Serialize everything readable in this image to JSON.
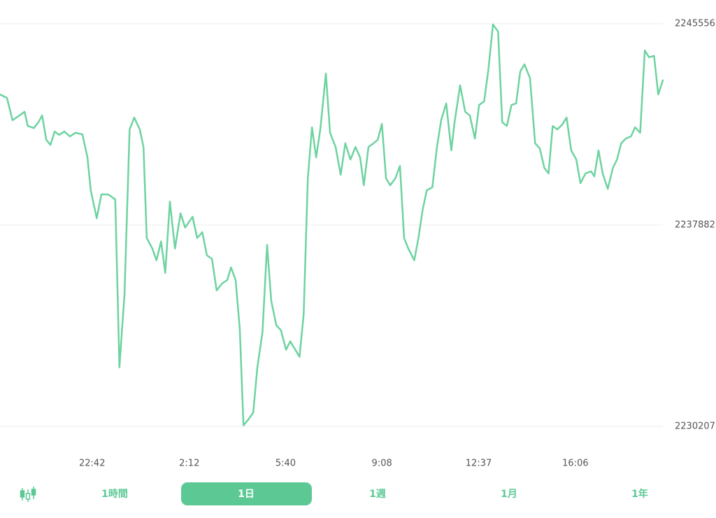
{
  "chart_data": {
    "type": "line",
    "color": "#6dd3a0",
    "grid": true,
    "xlim": [
      1163,
      2595
    ],
    "xticks": [
      {
        "value": 1362,
        "label": "22:42"
      },
      {
        "value": 1572,
        "label": "2:12"
      },
      {
        "value": 1780,
        "label": "5:40"
      },
      {
        "value": 1988,
        "label": "9:08"
      },
      {
        "value": 2197,
        "label": "12:37"
      },
      {
        "value": 2406,
        "label": "16:06"
      }
    ],
    "ylim": [
      2230207,
      2245556
    ],
    "yticks": [
      2230207,
      2237882,
      2245556
    ],
    "x": [
      1163,
      1178,
      1190,
      1205,
      1216,
      1223,
      1236,
      1246,
      1254,
      1263,
      1272,
      1281,
      1291,
      1302,
      1314,
      1326,
      1341,
      1352,
      1359,
      1372,
      1382,
      1397,
      1412,
      1421,
      1432,
      1443,
      1453,
      1465,
      1473,
      1480,
      1492,
      1501,
      1511,
      1520,
      1530,
      1541,
      1553,
      1563,
      1579,
      1589,
      1600,
      1610,
      1621,
      1631,
      1643,
      1654,
      1662,
      1672,
      1681,
      1689,
      1699,
      1710,
      1719,
      1730,
      1740,
      1749,
      1760,
      1770,
      1781,
      1790,
      1801,
      1810,
      1819,
      1828,
      1837,
      1846,
      1855,
      1867,
      1876,
      1888,
      1899,
      1909,
      1920,
      1931,
      1941,
      1949,
      1959,
      1970,
      1979,
      1988,
      1997,
      2006,
      2017,
      2027,
      2036,
      2045,
      2058,
      2067,
      2076,
      2085,
      2097,
      2107,
      2116,
      2127,
      2138,
      2145,
      2157,
      2168,
      2178,
      2189,
      2198,
      2209,
      2218,
      2228,
      2239,
      2248,
      2258,
      2268,
      2278,
      2287,
      2296,
      2308,
      2319,
      2329,
      2339,
      2348,
      2357,
      2367,
      2378,
      2387,
      2397,
      2408,
      2417,
      2428,
      2440,
      2447,
      2456,
      2465,
      2476,
      2487,
      2496,
      2505,
      2515,
      2526,
      2535,
      2546,
      2556,
      2565,
      2576,
      2585,
      2595
    ],
    "values": [
      2242860,
      2242730,
      2241880,
      2242060,
      2242200,
      2241660,
      2241580,
      2241800,
      2242060,
      2241130,
      2240940,
      2241450,
      2241320,
      2241450,
      2241260,
      2241400,
      2241340,
      2240460,
      2239210,
      2238140,
      2239050,
      2239050,
      2238860,
      2232460,
      2235260,
      2241530,
      2241980,
      2241530,
      2240860,
      2237390,
      2236990,
      2236540,
      2237260,
      2236060,
      2238780,
      2236990,
      2238330,
      2237790,
      2238200,
      2237390,
      2237610,
      2236730,
      2236590,
      2235390,
      2235660,
      2235790,
      2236270,
      2235790,
      2233930,
      2230250,
      2230460,
      2230730,
      2232460,
      2233790,
      2237130,
      2234990,
      2234060,
      2233870,
      2233130,
      2233450,
      2233130,
      2232860,
      2234460,
      2239660,
      2241610,
      2240460,
      2241530,
      2243660,
      2241400,
      2240860,
      2239800,
      2241000,
      2240380,
      2240860,
      2240460,
      2239400,
      2240860,
      2241000,
      2241130,
      2241740,
      2239660,
      2239400,
      2239660,
      2240140,
      2237390,
      2236990,
      2236540,
      2237390,
      2238460,
      2239210,
      2239320,
      2240860,
      2241880,
      2242520,
      2240730,
      2241800,
      2243210,
      2242200,
      2242060,
      2241180,
      2242460,
      2242600,
      2243800,
      2245530,
      2245260,
      2241800,
      2241660,
      2242460,
      2242520,
      2243740,
      2244010,
      2243480,
      2241000,
      2240810,
      2240060,
      2239850,
      2241660,
      2241530,
      2241720,
      2241980,
      2240730,
      2240380,
      2239480,
      2239850,
      2239930,
      2239740,
      2240730,
      2239850,
      2239260,
      2240060,
      2240380,
      2241000,
      2241180,
      2241260,
      2241610,
      2241400,
      2244540,
      2244280,
      2244330,
      2242860,
      2243400
    ]
  },
  "ui": {
    "tabs": [
      "1時間",
      "1日",
      "1週",
      "1月",
      "1年"
    ],
    "selected_tab": 1
  }
}
